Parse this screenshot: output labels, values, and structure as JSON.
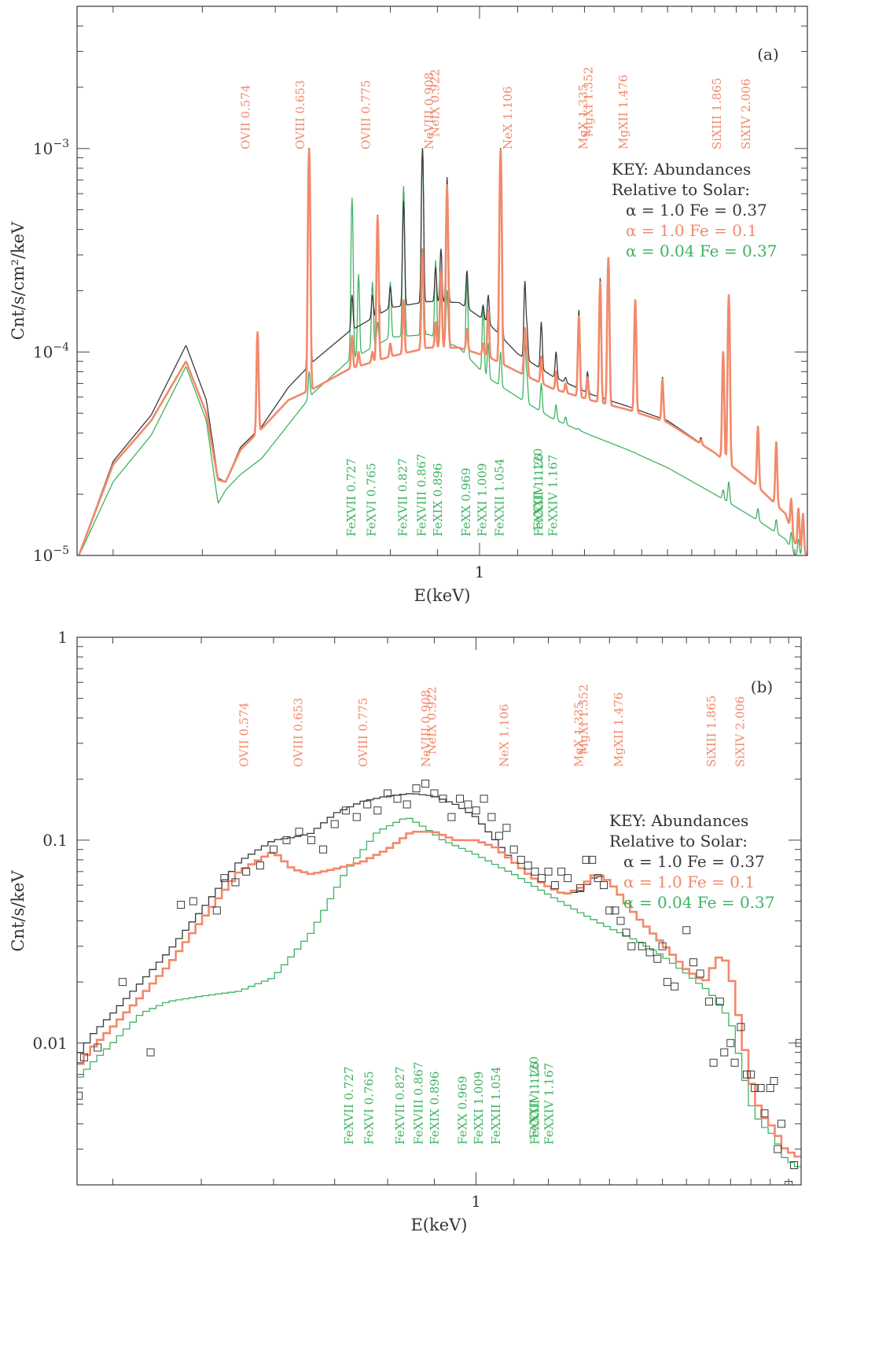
{
  "colors": {
    "black": "#3a3a3a",
    "orange": "#f2896b",
    "green": "#3fb362",
    "frame": "#444444"
  },
  "chart_data": [
    {
      "panel": "(a)",
      "type": "line",
      "xlabel": "E(keV)",
      "ylabel": "Cnt/s/cm²/keV",
      "xscale": "log",
      "yscale": "log",
      "xlim": [
        0.3655,
        2.27
      ],
      "ylim": [
        1e-05,
        0.005
      ],
      "xticks": [
        {
          "value": 1,
          "label": "1"
        }
      ],
      "yticks": [
        {
          "value": 1e-05,
          "base": "10",
          "exp": "−5"
        },
        {
          "value": 0.0001,
          "base": "10",
          "exp": "−4"
        },
        {
          "value": 0.001,
          "base": "10",
          "exp": "−3"
        }
      ],
      "key": {
        "title_line1": "KEY: Abundances",
        "title_line2": "Relative to Solar:",
        "entries": [
          {
            "text": "α  =  1.0   Fe  =  0.37",
            "color": "black"
          },
          {
            "text": "α  =  1.0   Fe  =  0.1",
            "color": "orange"
          },
          {
            "text": "α  =  0.04  Fe  =  0.37",
            "color": "green"
          }
        ]
      },
      "line_labels_top": [
        "OVII 0.574",
        "OVIII 0.653",
        "OVIII 0.775",
        "NeVIII 0.908",
        "NeIX 0.922",
        "NeX 1.106",
        "MgX 1.335",
        "MgXI 1.352",
        "MgXII 1.476",
        "SiXIII 1.865",
        "SiXIV 2.006"
      ],
      "line_labels_bottom": [
        "FeXVII 0.727",
        "FeXVI 0.765",
        "FeXVII 0.827",
        "FeXVIII 0.867",
        "FeXIX 0.896",
        "FeXX 0.969",
        "FeXXI 1.009",
        "FeXXII 1.054",
        "FeXXIV 1.120",
        "FeXXIII 1.126",
        "FeXXIV 1.167"
      ],
      "continuum": {
        "x": [
          0.3655,
          0.4,
          0.44,
          0.48,
          0.505,
          0.52,
          0.53,
          0.55,
          0.58,
          0.62,
          0.66,
          0.72,
          0.8,
          0.88,
          0.95,
          1.02,
          1.1,
          1.2,
          1.32,
          1.45,
          1.6,
          1.8,
          2.0,
          2.15,
          2.2,
          2.27
        ],
        "series": [
          {
            "name": "α = 1.0 Fe = 0.37",
            "color": "black",
            "y": [
              9.5e-06,
              2.9e-05,
              4.9e-05,
              0.000108,
              5.8e-05,
              2.4e-05,
              2.3e-05,
              3.4e-05,
              4.3e-05,
              6.7e-05,
              9e-05,
              0.000125,
              0.000165,
              0.000177,
              0.000175,
              0.00014,
              9.8e-05,
              7.6e-05,
              6.2e-05,
              5.4e-05,
              4.6e-05,
              3.2e-05,
              2.2e-05,
              1.6e-05,
              1.15e-05,
              1e-05
            ]
          },
          {
            "name": "α = 1.0 Fe = 0.1",
            "color": "orange",
            "y": [
              9.5e-06,
              2.8e-05,
              4.6e-05,
              9e-05,
              5e-05,
              2.35e-05,
              2.3e-05,
              3.3e-05,
              4.2e-05,
              5.8e-05,
              6.6e-05,
              8.2e-05,
              9.5e-05,
              0.000105,
              0.000105,
              9.5e-05,
              8e-05,
              6.6e-05,
              5.8e-05,
              5.2e-05,
              4.5e-05,
              3.2e-05,
              2.2e-05,
              1.6e-05,
              1.15e-05,
              1e-05
            ]
          },
          {
            "name": "α = 0.04 Fe = 0.37",
            "color": "green",
            "y": [
              9.5e-06,
              2.3e-05,
              3.9e-05,
              8.5e-05,
              4.6e-05,
              1.8e-05,
              2.1e-05,
              2.5e-05,
              3e-05,
              4.4e-05,
              6.3e-05,
              9e-05,
              0.000118,
              0.000122,
              0.000105,
              7.5e-05,
              6e-05,
              4.7e-05,
              3.9e-05,
              3.3e-05,
              2.7e-05,
              2e-05,
              1.5e-05,
              1.2e-05,
              1e-05,
              1e-05
            ]
          }
        ]
      },
      "lines": [
        {
          "e": 0.574,
          "peak": [
            0.000125,
            0.000125,
            2.5e-05
          ]
        },
        {
          "e": 0.653,
          "peak": [
            0.001,
            0.001,
            8e-05
          ]
        },
        {
          "e": 0.7,
          "peak": [
            8e-05,
            7.5e-05,
            6e-05
          ]
        },
        {
          "e": 0.727,
          "peak": [
            0.00019,
            0.00012,
            0.00057
          ]
        },
        {
          "e": 0.739,
          "peak": [
            0.00013,
            0.0001,
            0.00024
          ]
        },
        {
          "e": 0.765,
          "peak": [
            0.00019,
            0.0001,
            0.00022
          ]
        },
        {
          "e": 0.775,
          "peak": [
            0.00047,
            0.00046,
            0.00014
          ]
        },
        {
          "e": 0.8,
          "peak": [
            0.00021,
            0.00011,
            0.00022
          ]
        },
        {
          "e": 0.827,
          "peak": [
            0.00055,
            0.00018,
            0.00065
          ]
        },
        {
          "e": 0.867,
          "peak": [
            0.001,
            0.00032,
            0.001
          ]
        },
        {
          "e": 0.896,
          "peak": [
            0.00026,
            0.00014,
            0.00028
          ]
        },
        {
          "e": 0.908,
          "peak": [
            0.00032,
            0.00025,
            0.00019
          ]
        },
        {
          "e": 0.922,
          "peak": [
            0.00072,
            0.00066,
            0.0002
          ]
        },
        {
          "e": 0.969,
          "peak": [
            0.00025,
            0.00013,
            0.00023
          ]
        },
        {
          "e": 1.009,
          "peak": [
            0.00017,
            0.00011,
            0.00017
          ]
        },
        {
          "e": 1.022,
          "peak": [
            0.00019,
            0.00016,
            0.00011
          ]
        },
        {
          "e": 1.054,
          "peak": [
            0.001,
            0.00098,
            0.0001
          ]
        },
        {
          "e": 1.12,
          "peak": [
            0.00022,
            0.00013,
            0.00011
          ]
        },
        {
          "e": 1.126,
          "peak": [
            0.00013,
            0.0001,
            7.5e-05
          ]
        },
        {
          "e": 1.167,
          "peak": [
            0.00014,
            9.5e-05,
            7e-05
          ]
        },
        {
          "e": 1.211,
          "peak": [
            0.0001,
            8e-05,
            5.5e-05
          ]
        },
        {
          "e": 1.24,
          "peak": [
            7.5e-05,
            7e-05,
            4.8e-05
          ]
        },
        {
          "e": 1.282,
          "peak": [
            0.00016,
            0.00015,
            4.2e-05
          ]
        },
        {
          "e": 1.31,
          "peak": [
            8e-05,
            7.5e-05,
            3.8e-05
          ]
        },
        {
          "e": 1.352,
          "peak": [
            0.00023,
            0.00022,
            3.6e-05
          ]
        },
        {
          "e": 1.38,
          "peak": [
            0.00029,
            0.00029,
            3.5e-05
          ]
        },
        {
          "e": 1.476,
          "peak": [
            0.00018,
            0.00018,
            3.2e-05
          ]
        },
        {
          "e": 1.58,
          "peak": [
            7.5e-05,
            7.3e-05,
            2.6e-05
          ]
        },
        {
          "e": 1.63,
          "peak": [
            3.8e-05,
            3.7e-05,
            2.3e-05
          ]
        },
        {
          "e": 1.69,
          "peak": [
            3.3e-05,
            3.2e-05,
            2.2e-05
          ]
        },
        {
          "e": 1.74,
          "peak": [
            3.8e-05,
            3.7e-05,
            2.1e-05
          ]
        },
        {
          "e": 1.839,
          "peak": [
            0.0001,
            0.0001,
            2.1e-05
          ]
        },
        {
          "e": 1.865,
          "peak": [
            0.00019,
            0.00019,
            2.3e-05
          ]
        },
        {
          "e": 2.006,
          "peak": [
            4.3e-05,
            4.3e-05,
            1.7e-05
          ]
        },
        {
          "e": 2.1,
          "peak": [
            3.6e-05,
            3.6e-05,
            1.5e-05
          ]
        },
        {
          "e": 2.18,
          "peak": [
            1.9e-05,
            1.9e-05,
            1.3e-05
          ]
        },
        {
          "e": 2.22,
          "peak": [
            1.7e-05,
            1.7e-05,
            1.2e-05
          ]
        },
        {
          "e": 2.245,
          "peak": [
            1.6e-05,
            1.6e-05,
            1.4e-05
          ]
        }
      ]
    },
    {
      "panel": "(b)",
      "type": "line",
      "xlabel": "E(keV)",
      "ylabel": "Cnt/s/keV",
      "xscale": "log",
      "yscale": "log",
      "xlim": [
        0.3655,
        2.27
      ],
      "ylim": [
        0.002,
        1
      ],
      "xticks": [
        {
          "value": 1,
          "label": "1"
        }
      ],
      "yticks": [
        {
          "value": 0.01,
          "label": "0.01"
        },
        {
          "value": 0.1,
          "label": "0.1"
        },
        {
          "value": 1,
          "label": "1"
        }
      ],
      "key": {
        "title_line1": "KEY: Abundances",
        "title_line2": "Relative to Solar:",
        "entries": [
          {
            "text": "α  =  1.0   Fe  =  0.37",
            "color": "black"
          },
          {
            "text": "α  =  1.0   Fe  =  0.1",
            "color": "orange"
          },
          {
            "text": "α  =  0.04  Fe  =  0.37",
            "color": "green"
          }
        ]
      },
      "line_labels_top": [
        "OVII 0.574",
        "OVIII 0.653",
        "OVIII 0.775",
        "NeVIII 0.908",
        "NeIX 0.922",
        "NeX 1.106",
        "MgX 1.335",
        "MgXI 1.352",
        "MgXII 1.476",
        "SiXIII 1.865",
        "SiXIV 2.006"
      ],
      "line_labels_bottom": [
        "FeXVII 0.727",
        "FeXVI 0.765",
        "FeXVII 0.827",
        "FeXVIII 0.867",
        "FeXIX 0.896",
        "FeXX 0.969",
        "FeXXI 1.009",
        "FeXXII 1.054",
        "FeXXIV 1.120",
        "FeXXIII 1.126",
        "FeXXIV 1.167"
      ],
      "series": [
        {
          "name": "α = 1.0 Fe = 0.37",
          "color": "black",
          "x": [
            0.3655,
            0.38,
            0.4,
            0.43,
            0.46,
            0.5,
            0.55,
            0.6,
            0.63,
            0.66,
            0.7,
            0.75,
            0.8,
            0.85,
            0.9,
            0.95,
            1.0,
            1.05,
            1.1,
            1.15,
            1.2,
            1.25,
            1.3,
            1.35,
            1.38,
            1.42,
            1.5,
            1.6,
            1.7,
            1.78,
            1.82,
            1.86,
            1.9,
            1.95,
            2.0,
            2.05,
            2.12,
            2.18,
            2.27
          ],
          "y": [
            0.0085,
            0.011,
            0.014,
            0.02,
            0.028,
            0.045,
            0.078,
            0.1,
            0.103,
            0.108,
            0.135,
            0.155,
            0.165,
            0.17,
            0.165,
            0.15,
            0.13,
            0.1,
            0.078,
            0.066,
            0.059,
            0.054,
            0.056,
            0.066,
            0.066,
            0.058,
            0.042,
            0.031,
            0.023,
            0.02,
            0.024,
            0.028,
            0.022,
            0.012,
            0.0065,
            0.0045,
            0.0038,
            0.003,
            0.0027
          ]
        },
        {
          "name": "α = 1.0 Fe = 0.1",
          "color": "orange",
          "x": [
            0.3655,
            0.38,
            0.4,
            0.43,
            0.46,
            0.5,
            0.55,
            0.6,
            0.63,
            0.66,
            0.7,
            0.75,
            0.8,
            0.85,
            0.9,
            0.95,
            1.0,
            1.05,
            1.1,
            1.15,
            1.2,
            1.25,
            1.3,
            1.35,
            1.38,
            1.42,
            1.5,
            1.6,
            1.7,
            1.78,
            1.82,
            1.86,
            1.9,
            1.95,
            2.0,
            2.05,
            2.12,
            2.18,
            2.27
          ],
          "y": [
            0.0075,
            0.0095,
            0.012,
            0.017,
            0.024,
            0.04,
            0.07,
            0.088,
            0.072,
            0.068,
            0.072,
            0.078,
            0.09,
            0.11,
            0.11,
            0.1,
            0.1,
            0.092,
            0.078,
            0.066,
            0.059,
            0.054,
            0.058,
            0.068,
            0.066,
            0.058,
            0.042,
            0.031,
            0.023,
            0.02,
            0.024,
            0.028,
            0.022,
            0.012,
            0.0065,
            0.0045,
            0.0038,
            0.003,
            0.0027
          ]
        },
        {
          "name": "α = 0.04 Fe = 0.37",
          "color": "green",
          "x": [
            0.3655,
            0.38,
            0.4,
            0.43,
            0.46,
            0.5,
            0.55,
            0.6,
            0.66,
            0.72,
            0.78,
            0.84,
            0.88,
            0.92,
            1.0,
            1.1,
            1.2,
            1.3,
            1.4,
            1.5,
            1.6,
            1.7,
            1.8,
            1.9,
            1.95,
            2.0,
            2.05,
            2.12,
            2.18,
            2.27
          ],
          "y": [
            0.0065,
            0.008,
            0.01,
            0.014,
            0.016,
            0.017,
            0.018,
            0.021,
            0.035,
            0.07,
            0.11,
            0.13,
            0.115,
            0.1,
            0.085,
            0.068,
            0.054,
            0.044,
            0.037,
            0.032,
            0.027,
            0.022,
            0.018,
            0.013,
            0.008,
            0.005,
            0.004,
            0.0035,
            0.0027,
            0.0024
          ]
        }
      ],
      "data_points": {
        "color": "black",
        "x": [
          0.367,
          0.372,
          0.385,
          0.41,
          0.44,
          0.475,
          0.49,
          0.52,
          0.53,
          0.545,
          0.56,
          0.58,
          0.6,
          0.62,
          0.64,
          0.66,
          0.68,
          0.7,
          0.72,
          0.74,
          0.76,
          0.78,
          0.8,
          0.82,
          0.84,
          0.86,
          0.88,
          0.9,
          0.92,
          0.94,
          0.96,
          0.98,
          1.0,
          1.02,
          1.04,
          1.06,
          1.08,
          1.1,
          1.12,
          1.14,
          1.16,
          1.18,
          1.2,
          1.22,
          1.24,
          1.26,
          1.3,
          1.32,
          1.34,
          1.36,
          1.38,
          1.4,
          1.42,
          1.44,
          1.46,
          1.48,
          1.52,
          1.55,
          1.58,
          1.6,
          1.62,
          1.65,
          1.7,
          1.73,
          1.76,
          1.8,
          1.82,
          1.85,
          1.87,
          1.9,
          1.92,
          1.95,
          1.98,
          2.0,
          2.02,
          2.05,
          2.07,
          2.1,
          2.12,
          2.14,
          2.16,
          2.2,
          2.23,
          2.26
        ],
        "y": [
          0.0055,
          0.0085,
          0.0095,
          0.02,
          0.009,
          0.048,
          0.05,
          0.045,
          0.065,
          0.062,
          0.07,
          0.075,
          0.09,
          0.1,
          0.11,
          0.1,
          0.09,
          0.12,
          0.14,
          0.13,
          0.15,
          0.14,
          0.17,
          0.16,
          0.15,
          0.18,
          0.19,
          0.17,
          0.16,
          0.13,
          0.16,
          0.15,
          0.14,
          0.16,
          0.13,
          0.105,
          0.115,
          0.09,
          0.08,
          0.075,
          0.07,
          0.065,
          0.07,
          0.06,
          0.07,
          0.065,
          0.058,
          0.08,
          0.08,
          0.065,
          0.06,
          0.045,
          0.045,
          0.04,
          0.035,
          0.03,
          0.03,
          0.028,
          0.026,
          0.03,
          0.02,
          0.019,
          0.036,
          0.025,
          0.022,
          0.016,
          0.008,
          0.016,
          0.009,
          0.01,
          0.008,
          0.012,
          0.007,
          0.007,
          0.006,
          0.006,
          0.0045,
          0.006,
          0.0065,
          0.003,
          0.004,
          0.002,
          0.0025,
          0.01
        ]
      }
    }
  ]
}
